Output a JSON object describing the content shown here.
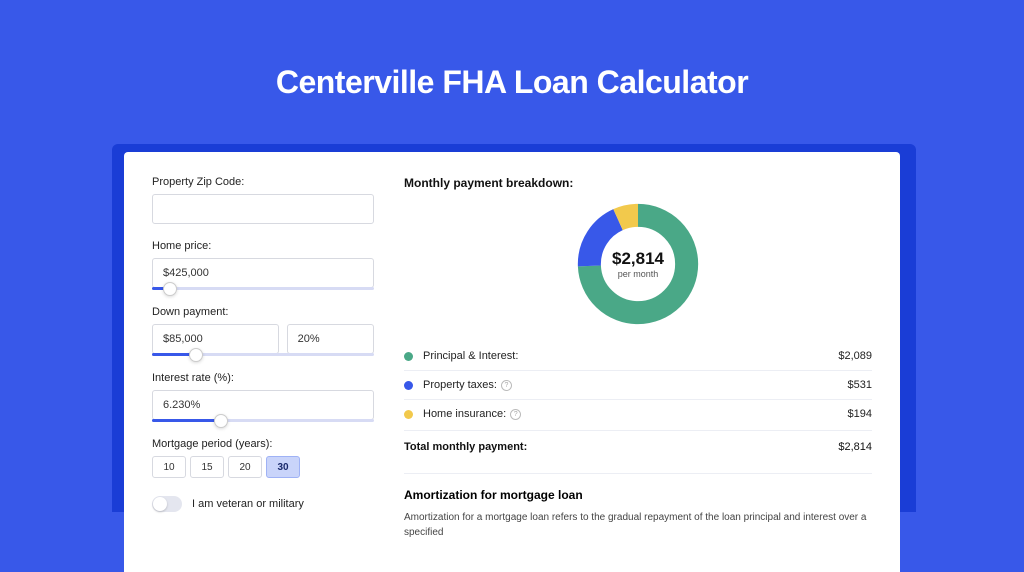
{
  "page": {
    "title": "Centerville FHA Loan Calculator",
    "background_color": "#3858e9",
    "shadow_color": "#1a3dd6"
  },
  "form": {
    "zip": {
      "label": "Property Zip Code:",
      "value": ""
    },
    "home_price": {
      "label": "Home price:",
      "value": "$425,000",
      "slider_pct": 8
    },
    "down_payment": {
      "label": "Down payment:",
      "value": "$85,000",
      "pct_value": "20%",
      "slider_pct": 20
    },
    "interest_rate": {
      "label": "Interest rate (%):",
      "value": "6.230%",
      "slider_pct": 31
    },
    "mortgage_period": {
      "label": "Mortgage period (years):",
      "options": [
        "10",
        "15",
        "20",
        "30"
      ],
      "selected": "30"
    },
    "veteran": {
      "label": "I am veteran or military",
      "checked": false
    }
  },
  "breakdown": {
    "title": "Monthly payment breakdown:",
    "donut": {
      "amount": "$2,814",
      "sub": "per month",
      "type": "donut",
      "slices": [
        {
          "key": "principal_interest",
          "value": 2089,
          "color": "#4aa887"
        },
        {
          "key": "property_taxes",
          "value": 531,
          "color": "#3858e9"
        },
        {
          "key": "home_insurance",
          "value": 194,
          "color": "#f2c94c"
        }
      ],
      "ring_width_ratio": 0.3,
      "background_color": "#ffffff"
    },
    "rows": [
      {
        "dot": "#4aa887",
        "label": "Principal & Interest:",
        "info": false,
        "value": "$2,089"
      },
      {
        "dot": "#3858e9",
        "label": "Property taxes:",
        "info": true,
        "value": "$531"
      },
      {
        "dot": "#f2c94c",
        "label": "Home insurance:",
        "info": true,
        "value": "$194"
      }
    ],
    "total": {
      "label": "Total monthly payment:",
      "value": "$2,814"
    }
  },
  "amortization": {
    "title": "Amortization for mortgage loan",
    "text": "Amortization for a mortgage loan refers to the gradual repayment of the loan principal and interest over a specified"
  }
}
